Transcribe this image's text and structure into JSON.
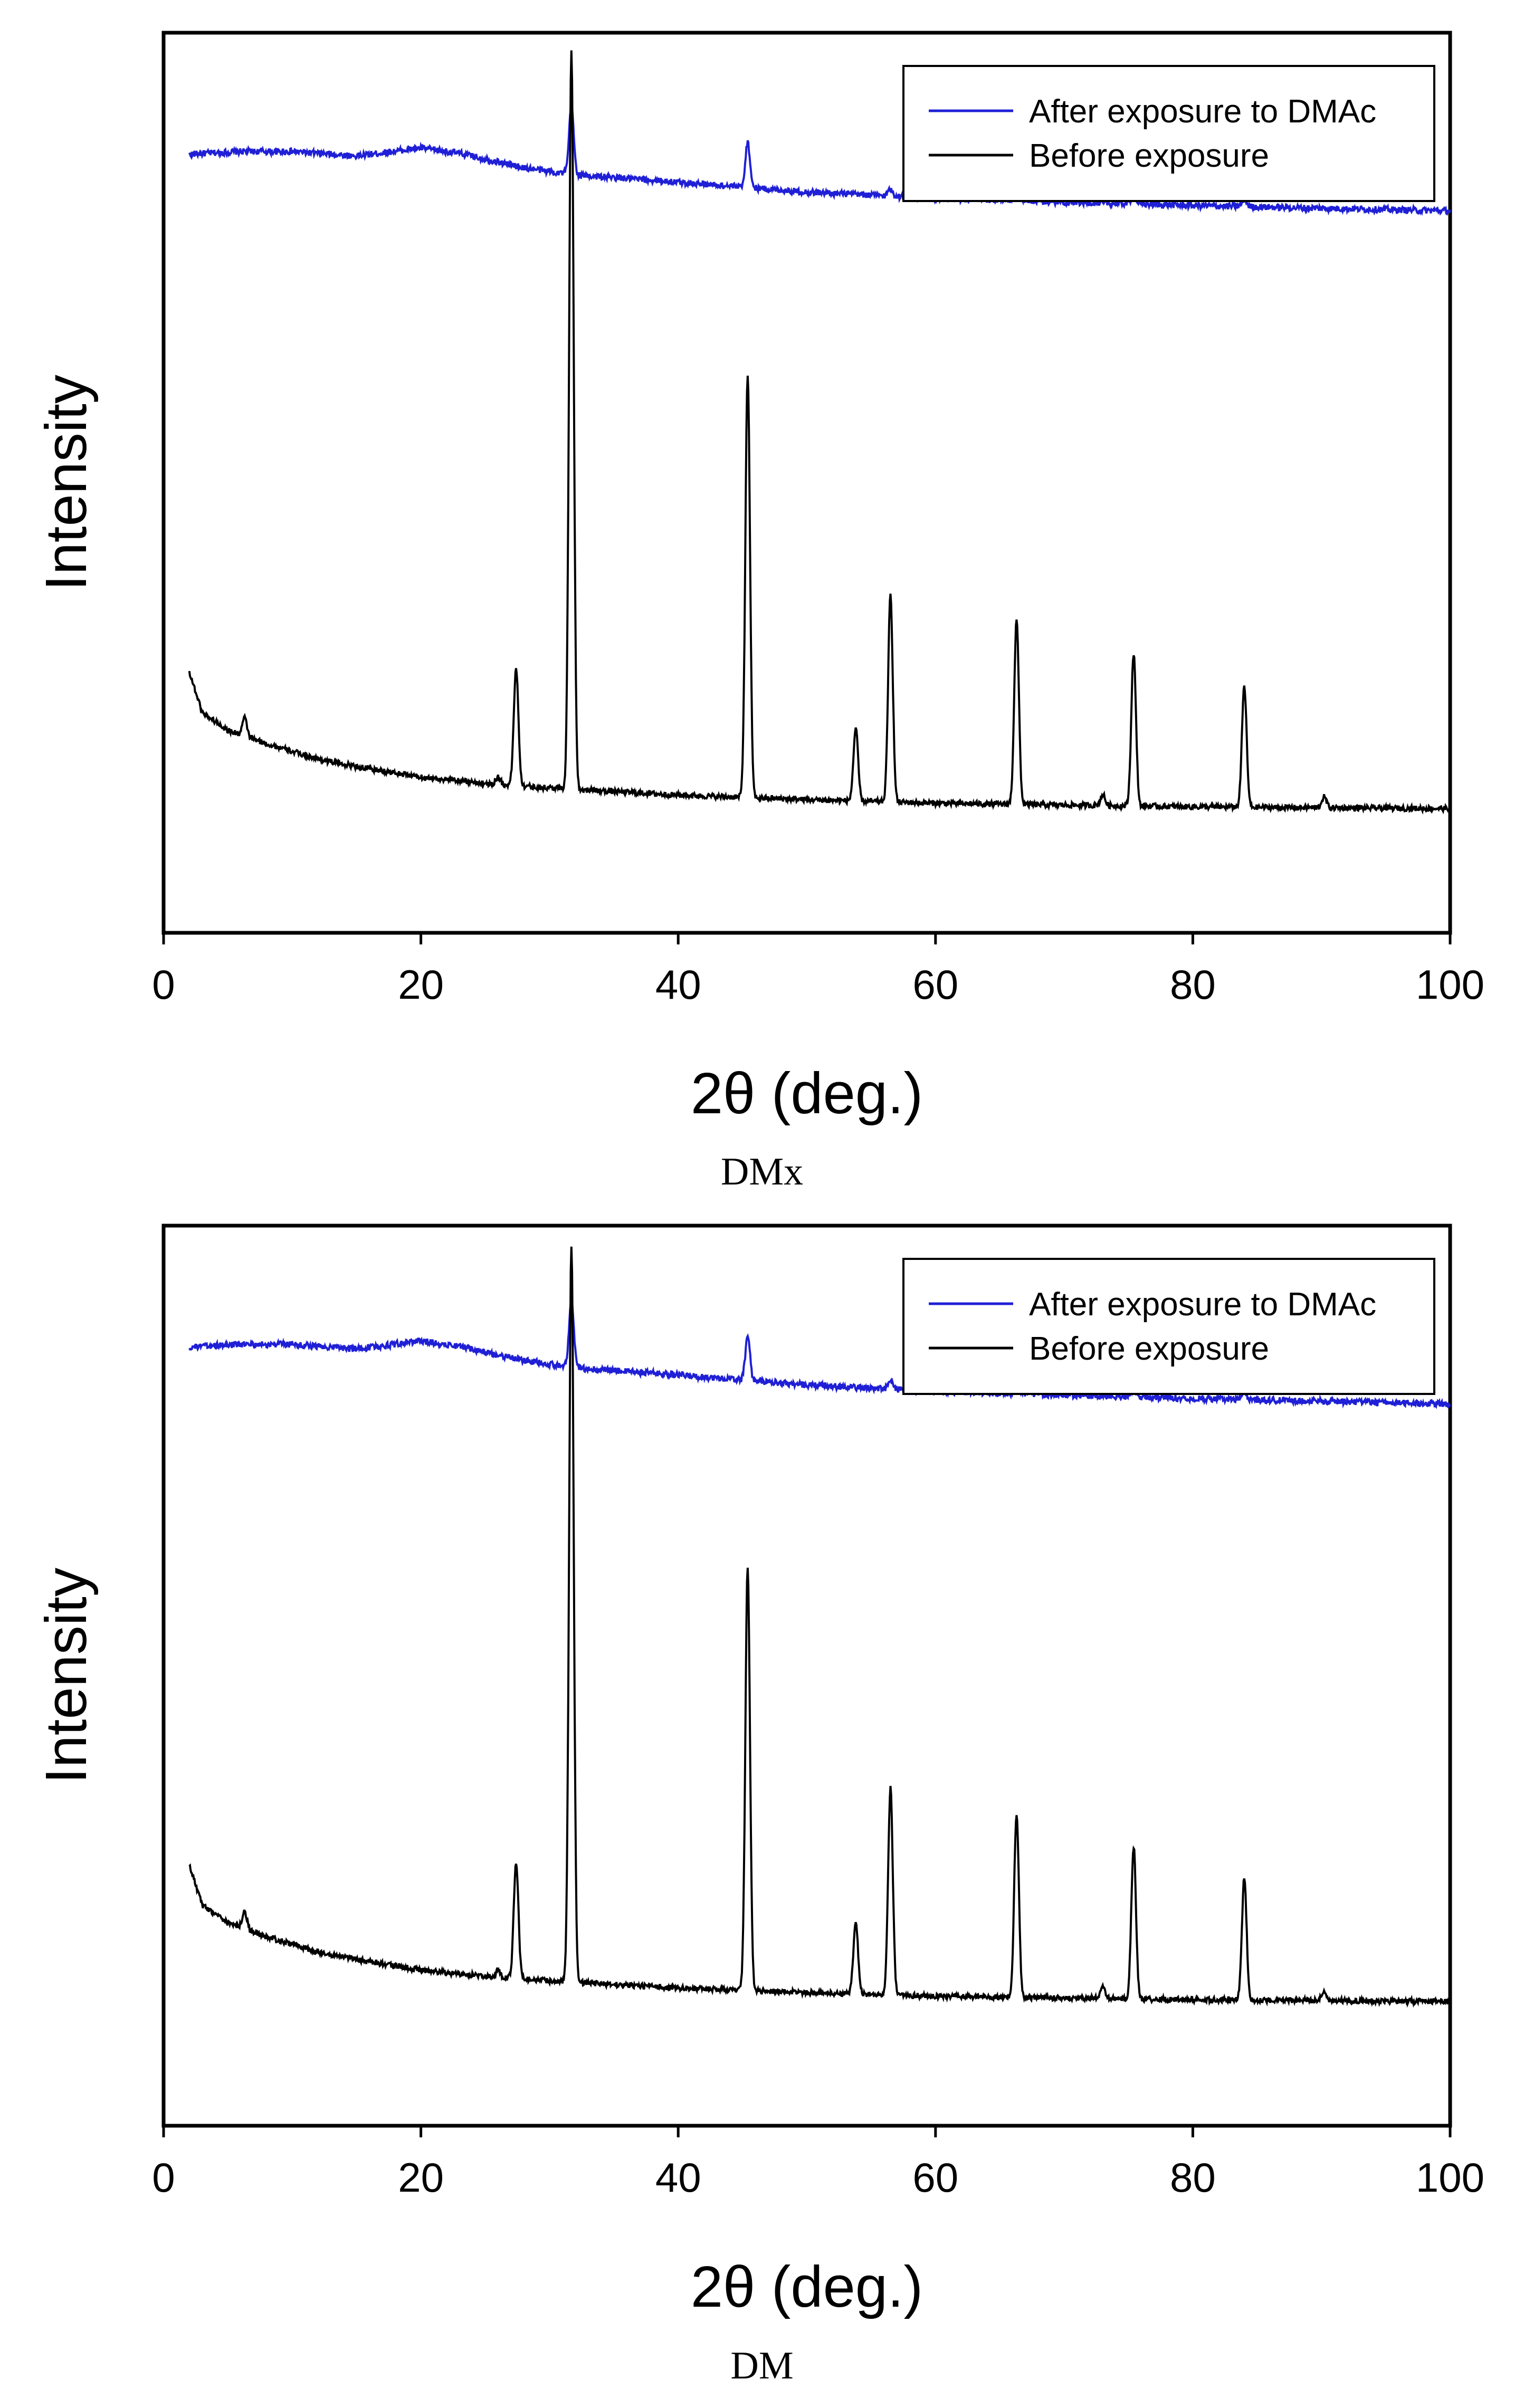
{
  "chart_data": [
    {
      "type": "line",
      "caption": "DMx",
      "xlabel": "2θ (deg.)",
      "ylabel": "Intensity",
      "xlim": [
        0,
        100
      ],
      "xticks": [
        0,
        20,
        40,
        60,
        80,
        100
      ],
      "ylim": [
        0,
        100
      ],
      "grid": false,
      "legend_position": "top-right",
      "series": [
        {
          "name": "After exposure to DMAc",
          "color": "#1f1fd6",
          "baseline": [
            [
              2,
              86.5
            ],
            [
              6,
              86.8
            ],
            [
              10,
              86.8
            ],
            [
              15,
              86.3
            ],
            [
              20,
              87.2
            ],
            [
              23,
              86.6
            ],
            [
              28,
              85.0
            ],
            [
              32,
              84.2
            ],
            [
              40,
              83.4
            ],
            [
              50,
              82.3
            ],
            [
              60,
              81.6
            ],
            [
              70,
              81.2
            ],
            [
              80,
              80.8
            ],
            [
              90,
              80.5
            ],
            [
              100,
              80.2
            ]
          ],
          "peaks": [
            [
              31.7,
              7.5
            ],
            [
              45.4,
              5.0
            ],
            [
              56.5,
              0.8
            ],
            [
              66.3,
              0.7
            ],
            [
              75.4,
              1.0
            ],
            [
              84.0,
              0.8
            ]
          ]
        },
        {
          "name": "Before exposure",
          "color": "#000000",
          "baseline": [
            [
              2,
              29
            ],
            [
              3,
              24.5
            ],
            [
              5,
              22.5
            ],
            [
              8,
              21
            ],
            [
              12,
              19.3
            ],
            [
              16,
              18.2
            ],
            [
              20,
              17.3
            ],
            [
              25,
              16.6
            ],
            [
              30,
              16.1
            ],
            [
              40,
              15.3
            ],
            [
              50,
              14.8
            ],
            [
              60,
              14.4
            ],
            [
              70,
              14.2
            ],
            [
              80,
              14.0
            ],
            [
              90,
              13.9
            ],
            [
              100,
              13.8
            ]
          ],
          "peaks": [
            [
              6.3,
              2.0
            ],
            [
              26.0,
              0.8
            ],
            [
              27.4,
              13.0
            ],
            [
              31.7,
              82.0
            ],
            [
              45.4,
              47.0
            ],
            [
              53.8,
              8.0
            ],
            [
              56.5,
              23.0
            ],
            [
              66.3,
              20.5
            ],
            [
              73.0,
              1.2
            ],
            [
              75.4,
              17.0
            ],
            [
              84.0,
              13.5
            ],
            [
              90.2,
              1.2
            ]
          ]
        }
      ]
    },
    {
      "type": "line",
      "caption": "DM",
      "xlabel": "2θ (deg.)",
      "ylabel": "Intensity",
      "xlim": [
        0,
        100
      ],
      "xticks": [
        0,
        20,
        40,
        60,
        80,
        100
      ],
      "ylim": [
        0,
        100
      ],
      "grid": false,
      "legend_position": "top-right",
      "series": [
        {
          "name": "After exposure to DMAc",
          "color": "#1f1fd6",
          "baseline": [
            [
              2,
              86.5
            ],
            [
              6,
              86.8
            ],
            [
              10,
              86.8
            ],
            [
              15,
              86.3
            ],
            [
              20,
              87.2
            ],
            [
              23,
              86.6
            ],
            [
              28,
              85.0
            ],
            [
              32,
              84.2
            ],
            [
              40,
              83.4
            ],
            [
              50,
              82.3
            ],
            [
              60,
              81.6
            ],
            [
              70,
              81.2
            ],
            [
              80,
              80.8
            ],
            [
              90,
              80.5
            ],
            [
              100,
              80.2
            ]
          ],
          "peaks": [
            [
              31.7,
              7.5
            ],
            [
              45.4,
              5.0
            ],
            [
              56.5,
              0.8
            ],
            [
              66.3,
              0.7
            ],
            [
              75.4,
              1.0
            ],
            [
              84.0,
              0.8
            ]
          ]
        },
        {
          "name": "Before exposure",
          "color": "#000000",
          "baseline": [
            [
              2,
              29
            ],
            [
              3,
              24.5
            ],
            [
              5,
              22.5
            ],
            [
              8,
              21
            ],
            [
              12,
              19.3
            ],
            [
              16,
              18.2
            ],
            [
              20,
              17.3
            ],
            [
              25,
              16.6
            ],
            [
              30,
              16.1
            ],
            [
              40,
              15.3
            ],
            [
              50,
              14.8
            ],
            [
              60,
              14.4
            ],
            [
              70,
              14.2
            ],
            [
              80,
              14.0
            ],
            [
              90,
              13.9
            ],
            [
              100,
              13.8
            ]
          ],
          "peaks": [
            [
              6.3,
              2.0
            ],
            [
              26.0,
              0.8
            ],
            [
              27.4,
              13.0
            ],
            [
              31.7,
              82.0
            ],
            [
              45.4,
              47.0
            ],
            [
              53.8,
              8.0
            ],
            [
              56.5,
              23.0
            ],
            [
              66.3,
              20.5
            ],
            [
              73.0,
              1.2
            ],
            [
              75.4,
              17.0
            ],
            [
              84.0,
              13.5
            ],
            [
              90.2,
              1.2
            ]
          ]
        }
      ]
    }
  ]
}
